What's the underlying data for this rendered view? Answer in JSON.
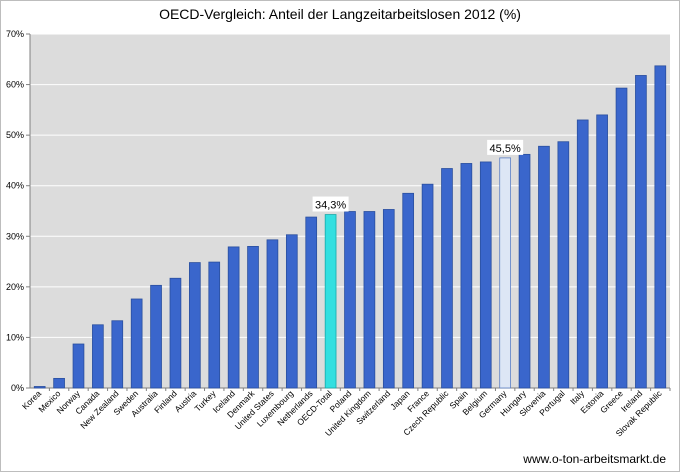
{
  "source_label": "www.o-ton-arbeitsmarkt.de",
  "colors": {
    "bar": "#3a66cc",
    "bar_stroke": "#2a4f9e",
    "oecd_total": "#33dfe0",
    "germany": "#dde6f5",
    "germany_stroke": "#5b7fc4",
    "plot_bg": "#dcdcdc",
    "grid": "#ffffff"
  },
  "chart_data": {
    "type": "bar",
    "title": "OECD-Vergleich: Anteil der Langzeitarbeitslosen 2012 (%)",
    "xlabel": "",
    "ylabel": "",
    "ylim": [
      0,
      70
    ],
    "yticks": [
      "0%",
      "10%",
      "20%",
      "30%",
      "40%",
      "50%",
      "60%",
      "70%"
    ],
    "grid": true,
    "categories": [
      "Korea",
      "Mexico",
      "Norway",
      "Canada",
      "New Zealand",
      "Sweden",
      "Australia",
      "Finland",
      "Austria",
      "Turkey",
      "Iceland",
      "Denmark",
      "United States",
      "Luxembourg",
      "Netherlands",
      "OECD-Total",
      "Poland",
      "United Kingdom",
      "Switzerland",
      "Japan",
      "France",
      "Czech Republic",
      "Spain",
      "Belgium",
      "Germany",
      "Hungary",
      "Slovenia",
      "Portugal",
      "Italy",
      "Estonia",
      "Greece",
      "Ireland",
      "Slovak Republic"
    ],
    "values": [
      0.3,
      1.9,
      8.7,
      12.5,
      13.3,
      17.6,
      20.3,
      21.7,
      24.8,
      24.9,
      27.9,
      28.0,
      29.3,
      30.3,
      33.8,
      34.3,
      34.9,
      34.9,
      35.3,
      38.5,
      40.3,
      43.4,
      44.4,
      44.7,
      45.5,
      46.2,
      47.8,
      48.7,
      53.0,
      54.0,
      59.3,
      61.8,
      63.7
    ],
    "data_labels": [
      {
        "category": "OECD-Total",
        "text": "34,3%"
      },
      {
        "category": "Germany",
        "text": "45,5%"
      }
    ]
  }
}
